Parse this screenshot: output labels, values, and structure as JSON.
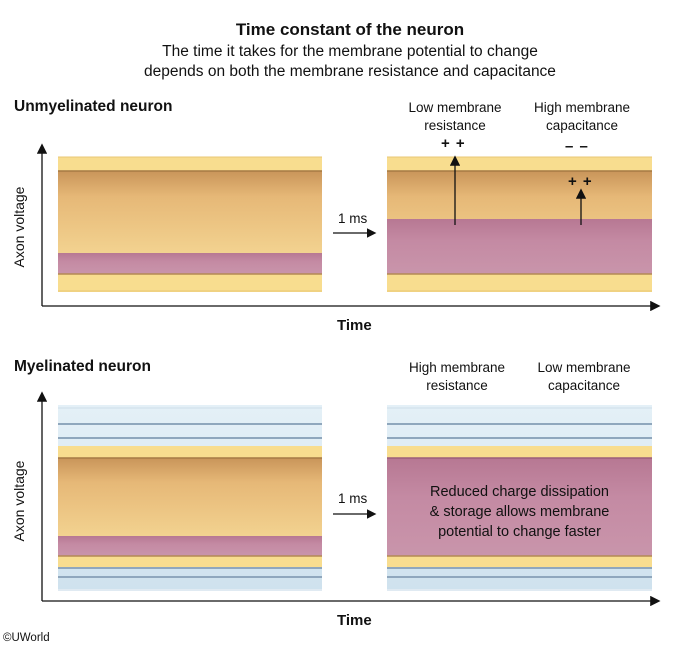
{
  "title": "Time constant of the neuron",
  "subtitle_line1": "The time it takes for the membrane potential to change",
  "subtitle_line2": "depends on both the membrane resistance and capacitance",
  "unmyelinated": {
    "heading": "Unmyelinated neuron",
    "left_label_line1": "Low membrane",
    "left_label_line2": "resistance",
    "right_label_line1": "High membrane",
    "right_label_line2": "capacitance",
    "charges_top": "+ +",
    "charges_neg": "– –",
    "charges_small": "+ +",
    "interval": "1 ms",
    "ylabel": "Axon voltage",
    "xlabel": "Time"
  },
  "myelinated": {
    "heading": "Myelinated neuron",
    "left_label_line1": "High membrane",
    "left_label_line2": "resistance",
    "right_label_line1": "Low membrane",
    "right_label_line2": "capacitance",
    "center_line1": "Reduced charge dissipation",
    "center_line2": "& storage allows membrane",
    "center_line3": "potential to change faster",
    "interval": "1 ms",
    "ylabel": "Axon voltage",
    "xlabel": "Time"
  },
  "credit": "©UWorld",
  "colors": {
    "membrane_yellow": "#f8dd8f",
    "cytoplasm_tan": "#e9bb74",
    "charge_pink": "#c48aa3",
    "myelin_blue": "#cfe3ef"
  }
}
